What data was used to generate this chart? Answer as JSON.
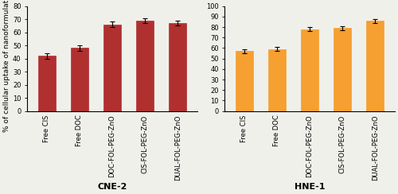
{
  "cne2": {
    "categories": [
      "Free CIS",
      "Free DOC",
      "DOC-FOL-PEG-ZnO",
      "CIS-FOL-PEG-ZnO",
      "DUAL-FOL-PEG-ZnO"
    ],
    "values": [
      42,
      48,
      66,
      69,
      67
    ],
    "errors": [
      2,
      2,
      2,
      2,
      2
    ],
    "bar_color": "#b03030",
    "ylim": [
      0,
      80
    ],
    "yticks": [
      0,
      10,
      20,
      30,
      40,
      50,
      60,
      70,
      80
    ],
    "xlabel": "CNE-2",
    "ylabel": "% of cellular uptake of nanoformulations"
  },
  "hne1": {
    "categories": [
      "Free CIS",
      "Free DOC",
      "DOC-FOL-PEG-ZnO",
      "CIS-FOL-PEG-ZnO",
      "DUAL-FOL-PEG-ZnO"
    ],
    "values": [
      57,
      59,
      78,
      79,
      86
    ],
    "errors": [
      2,
      2,
      2,
      2,
      2
    ],
    "bar_color": "#f5a030",
    "ylim": [
      0,
      100
    ],
    "yticks": [
      0,
      10,
      20,
      30,
      40,
      50,
      60,
      70,
      80,
      90,
      100
    ],
    "xlabel": "HNE-1",
    "ylabel": ""
  },
  "bg_color": "#f0f0eb",
  "label_fontsize": 6.0,
  "tick_fontsize": 6.0,
  "xlabel_fontsize": 8.0,
  "ylabel_fontsize": 6.5
}
